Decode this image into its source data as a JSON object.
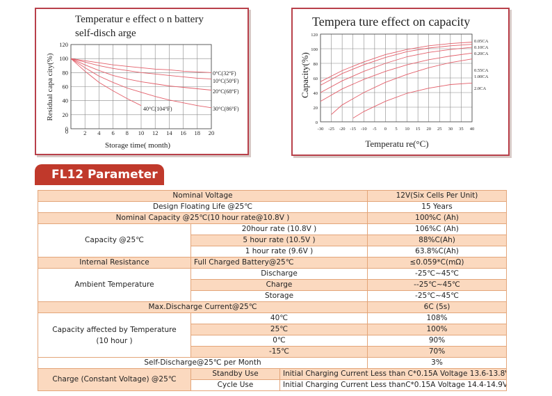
{
  "chart_data": [
    {
      "type": "line",
      "title": "Temperatur e effect o n battery self-disch arge",
      "title_line1": "Temperatur e effect o n battery",
      "title_line2": "self-disch arge",
      "xlabel": "Storage time( month)",
      "ylabel": "Residual capa city(%)",
      "xlim": [
        0,
        20
      ],
      "ylim": [
        0,
        120
      ],
      "x_ticks": [
        "2",
        "4",
        "6",
        "8",
        "10",
        "12",
        "14",
        "16",
        "18",
        "20"
      ],
      "y_ticks": [
        "0",
        "20",
        "40",
        "60",
        "80",
        "100",
        "120"
      ],
      "x_zero": "0",
      "grid": true,
      "series": [
        {
          "name": "0°C(32°F)",
          "x": [
            0,
            2,
            4,
            6,
            8,
            10,
            12,
            14,
            16,
            18,
            20
          ],
          "y": [
            100,
            97,
            94,
            91,
            89,
            87,
            85,
            84,
            82,
            81,
            80
          ]
        },
        {
          "name": "10°C(50°F)",
          "x": [
            0,
            2,
            4,
            6,
            8,
            10,
            12,
            14,
            16,
            18,
            20
          ],
          "y": [
            100,
            95,
            90,
            86,
            83,
            80,
            78,
            76,
            74,
            72,
            71
          ]
        },
        {
          "name": "20°C(68°F)",
          "x": [
            0,
            2,
            4,
            6,
            8,
            10,
            12,
            14,
            16,
            18,
            20
          ],
          "y": [
            100,
            91,
            83,
            76,
            71,
            67,
            64,
            61,
            59,
            57,
            55
          ]
        },
        {
          "name": "30°C(86°F)",
          "x": [
            0,
            2,
            4,
            6,
            8,
            10,
            12,
            14,
            16,
            18,
            20
          ],
          "y": [
            100,
            87,
            75,
            66,
            58,
            52,
            46,
            41,
            37,
            33,
            30
          ]
        },
        {
          "name": "40°C(104°F)",
          "x": [
            0,
            2,
            4,
            6,
            8,
            10
          ],
          "y": [
            100,
            82,
            66,
            54,
            43,
            33
          ]
        }
      ]
    },
    {
      "type": "line",
      "title": "Tempera ture effect on capacity",
      "xlabel": "Temperatu re(°C)",
      "ylabel": "Capacity(%)",
      "xlim": [
        -30,
        40
      ],
      "ylim": [
        0,
        120
      ],
      "x_ticks": [
        "-30",
        "-25",
        "-20",
        "-15",
        "-10",
        "-5",
        "0",
        "5",
        "10",
        "15",
        "20",
        "25",
        "30",
        "35",
        "40"
      ],
      "y_ticks": [
        "0",
        "20",
        "40",
        "60",
        "80",
        "100",
        "120"
      ],
      "grid": true,
      "series": [
        {
          "name": "0.05CA",
          "x": [
            -30,
            -20,
            -10,
            0,
            10,
            20,
            30,
            40
          ],
          "y": [
            55,
            70,
            82,
            92,
            99,
            104,
            107,
            109
          ]
        },
        {
          "name": "0.10CA",
          "x": [
            -30,
            -20,
            -10,
            0,
            10,
            20,
            30,
            40
          ],
          "y": [
            50,
            66,
            78,
            88,
            96,
            101,
            104,
            106
          ]
        },
        {
          "name": "0.20CA",
          "x": [
            -30,
            -20,
            -10,
            0,
            10,
            20,
            30,
            40
          ],
          "y": [
            40,
            56,
            69,
            80,
            89,
            95,
            99,
            102
          ]
        },
        {
          "name": "0.55CA",
          "x": [
            -30,
            -20,
            -10,
            0,
            10,
            20,
            30,
            40
          ],
          "y": [
            28,
            45,
            58,
            69,
            78,
            85,
            90,
            94
          ]
        },
        {
          "name": "1.00CA",
          "x": [
            -25,
            -20,
            -10,
            0,
            10,
            20,
            30,
            40
          ],
          "y": [
            10,
            23,
            40,
            54,
            65,
            74,
            81,
            86
          ]
        },
        {
          "name": "2.0CA",
          "x": [
            -15,
            -10,
            0,
            10,
            20,
            30,
            40
          ],
          "y": [
            5,
            14,
            28,
            39,
            46,
            51,
            53
          ]
        }
      ]
    }
  ],
  "section_title": "FL12 Parameter",
  "table": {
    "nominal_voltage": {
      "label": "Nominal Voltage",
      "value": "12V(Six Cells Per Unit)"
    },
    "floating_life": {
      "label": "Design Floating Life @25℃",
      "value": "15 Years"
    },
    "nominal_capacity": {
      "label": "Nominal Capacity @25℃(10 hour rate@10.8V )",
      "value": "100%C (Ah)"
    },
    "capacity": {
      "label": "Capacity @25℃",
      "rows": [
        {
          "label": "20hour rate (10.8V )",
          "value": "106%C (Ah)"
        },
        {
          "label": "5 hour rate (10.5V )",
          "value": "88%C(Ah)"
        },
        {
          "label": "1 hour rate (9.6V )",
          "value": "63.8%C(Ah)"
        }
      ]
    },
    "internal_resistance": {
      "label": "Internal Resistance",
      "sub": "Full Charged Battery@25℃",
      "value": "≤0.059*C(mΩ)"
    },
    "ambient": {
      "label": "Ambient Temperature",
      "rows": [
        {
          "label": "Discharge",
          "value": "-25℃~45℃"
        },
        {
          "label": "Charge",
          "value": "--25℃~45℃"
        },
        {
          "label": "Storage",
          "value": "-25℃~45℃"
        }
      ]
    },
    "max_discharge": {
      "label": "Max.Discharge Current@25℃",
      "value": "6C (5s)"
    },
    "cap_temp": {
      "label_line1": "Capacity affected by Temperature",
      "label_line2": "(10 hour )",
      "rows": [
        {
          "label": "40℃",
          "value": "108%"
        },
        {
          "label": "25℃",
          "value": "100%"
        },
        {
          "label": "0℃",
          "value": "90%"
        },
        {
          "label": "-15℃",
          "value": "70%"
        }
      ]
    },
    "self_discharge": {
      "label": "Self-Discharge@25℃ per Month",
      "value": "3%"
    },
    "charge": {
      "label": "Charge (Constant Voltage) @25℃",
      "rows": [
        {
          "label": "Standby Use",
          "value": "Initial Charging Current Less than C*0.15A Voltage 13.6-13.8V"
        },
        {
          "label": "Cycle Use",
          "value": "Initial Charging Current Less thanC*0.15A Voltage 14.4-14.9V"
        }
      ]
    }
  }
}
